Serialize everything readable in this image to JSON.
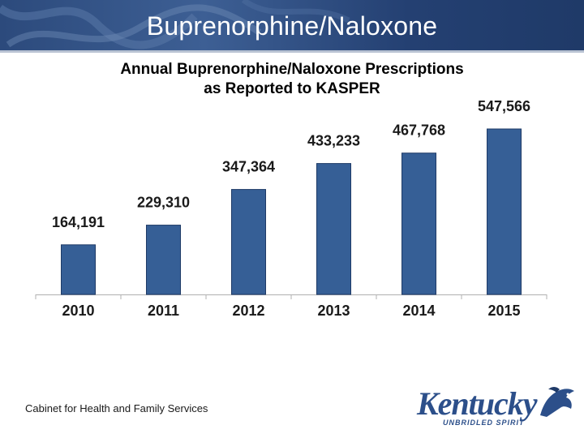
{
  "slide": {
    "title": "Buprenorphine/Naloxone",
    "footer": "Cabinet for Health and Family Services"
  },
  "logo": {
    "word": "Kentucky",
    "tagline": "UNBRIDLED SPIRIT"
  },
  "colors": {
    "banner": "#2c4a7c",
    "bar": "#365f96",
    "bar_edge": "#1e3a66"
  },
  "chart_data": {
    "type": "bar",
    "title": "Annual Buprenorphine/Naloxone  Prescriptions",
    "subtitle": "as Reported to KASPER",
    "categories": [
      "2010",
      "2011",
      "2012",
      "2013",
      "2014",
      "2015"
    ],
    "values": [
      164191,
      229310,
      347364,
      433233,
      467768,
      547566
    ],
    "value_labels": [
      "164,191",
      "229,310",
      "347,364",
      "433,233",
      "467,768",
      "547,566"
    ],
    "xlabel": "",
    "ylabel": "",
    "ylim": [
      0,
      547566
    ],
    "grid": false,
    "legend": "none"
  }
}
